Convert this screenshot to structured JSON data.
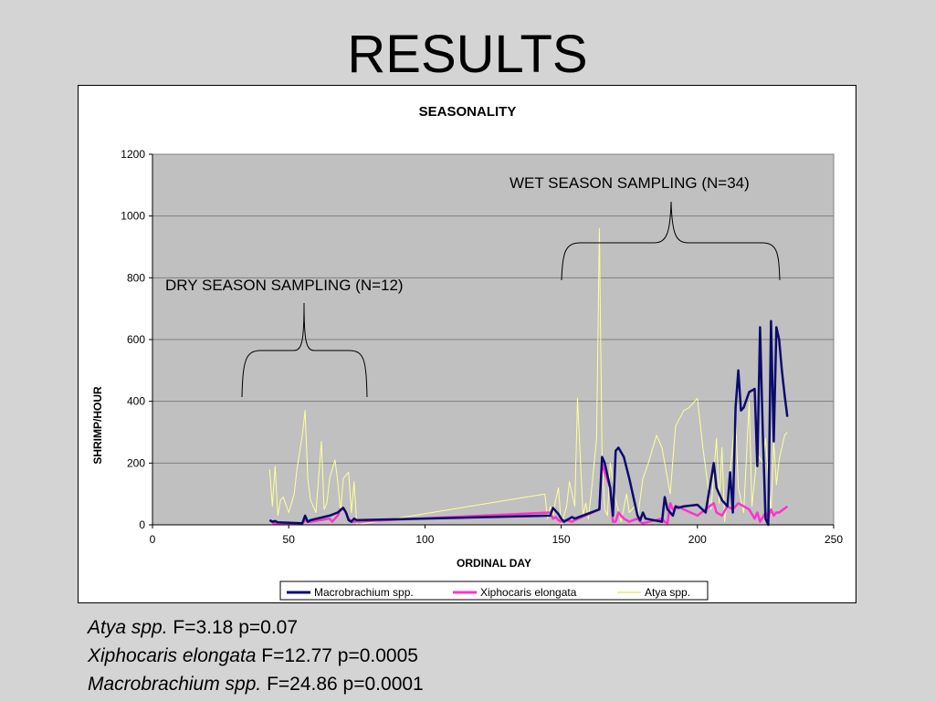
{
  "slide": {
    "title": "RESULTS"
  },
  "chart_data": {
    "type": "line",
    "title": "SEASONALITY",
    "xlabel": "ORDINAL DAY",
    "ylabel": "SHRIMP/HOUR",
    "xlim": [
      0,
      250
    ],
    "ylim": [
      0,
      1200
    ],
    "xticks": [
      0,
      50,
      100,
      150,
      200,
      250
    ],
    "yticks": [
      0,
      200,
      400,
      600,
      800,
      1000,
      1200
    ],
    "grid": true,
    "legend_position": "bottom",
    "annotations": {
      "dry": "DRY SEASON SAMPLING (N=12)",
      "wet": "WET SEASON SAMPLING (N=34)"
    },
    "series": [
      {
        "name": "Macrobrachium spp.",
        "color": "#0b0b6e",
        "x": [
          43,
          44,
          45,
          46,
          55,
          56,
          57,
          58,
          65,
          68,
          70,
          71,
          72,
          73,
          74,
          75,
          146,
          147,
          148,
          149,
          150,
          151,
          152,
          153,
          154,
          155,
          164,
          165,
          166,
          168,
          169,
          170,
          171,
          173,
          175,
          178,
          179,
          180,
          181,
          187,
          188,
          189,
          190,
          191,
          192,
          193,
          195,
          200,
          203,
          206,
          207,
          208,
          209,
          211,
          212,
          213,
          214,
          215,
          216,
          217,
          219,
          221,
          222,
          223,
          224,
          225,
          226,
          227,
          228,
          229,
          230,
          231,
          232,
          233
        ],
        "y": [
          15,
          10,
          12,
          8,
          5,
          30,
          10,
          15,
          30,
          40,
          55,
          40,
          15,
          10,
          20,
          15,
          30,
          55,
          45,
          35,
          20,
          10,
          15,
          20,
          25,
          20,
          50,
          220,
          200,
          120,
          30,
          240,
          250,
          220,
          150,
          30,
          15,
          40,
          20,
          10,
          90,
          50,
          40,
          30,
          60,
          55,
          60,
          65,
          40,
          200,
          120,
          100,
          80,
          60,
          170,
          40,
          380,
          500,
          370,
          380,
          430,
          440,
          190,
          640,
          300,
          20,
          0,
          660,
          270,
          640,
          600,
          500,
          420,
          350
        ]
      },
      {
        "name": "Xiphocaris elongata",
        "color": "#ff33cc",
        "x": [
          44,
          45,
          46,
          55,
          56,
          57,
          58,
          65,
          66,
          67,
          68,
          69,
          70,
          71,
          72,
          73,
          146,
          147,
          148,
          149,
          150,
          152,
          154,
          155,
          164,
          165,
          166,
          168,
          169,
          170,
          171,
          173,
          175,
          178,
          179,
          180,
          187,
          188,
          189,
          190,
          191,
          193,
          195,
          200,
          206,
          207,
          209,
          211,
          213,
          215,
          217,
          219,
          221,
          222,
          223,
          225,
          226,
          227,
          228,
          229,
          230,
          233
        ],
        "y": [
          5,
          5,
          5,
          5,
          15,
          10,
          10,
          20,
          10,
          20,
          30,
          50,
          55,
          40,
          20,
          10,
          40,
          20,
          25,
          15,
          10,
          15,
          10,
          15,
          50,
          200,
          170,
          120,
          10,
          10,
          40,
          20,
          10,
          20,
          10,
          5,
          20,
          10,
          5,
          70,
          50,
          60,
          50,
          30,
          70,
          40,
          30,
          60,
          50,
          70,
          60,
          50,
          20,
          40,
          10,
          40,
          20,
          50,
          30,
          40,
          40,
          60
        ]
      },
      {
        "name": "Atya spp.",
        "color": "#ffff99",
        "x": [
          43,
          44,
          45,
          46,
          47,
          48,
          50,
          52,
          53,
          55,
          56,
          57,
          58,
          60,
          62,
          63,
          64,
          65,
          67,
          68,
          69,
          70,
          72,
          73,
          74,
          75,
          144,
          145,
          146,
          147,
          148,
          149,
          150,
          152,
          153,
          155,
          156,
          158,
          159,
          160,
          161,
          163,
          164,
          165,
          166,
          167,
          168,
          170,
          172,
          174,
          175,
          177,
          178,
          180,
          182,
          185,
          187,
          190,
          192,
          195,
          197,
          200,
          202,
          205,
          207,
          208,
          209,
          210,
          212,
          214,
          215,
          217,
          219,
          220,
          222,
          224,
          225,
          227,
          228,
          229,
          230,
          232,
          233
        ],
        "y": [
          180,
          60,
          190,
          30,
          80,
          90,
          40,
          100,
          180,
          290,
          370,
          150,
          80,
          40,
          270,
          50,
          70,
          150,
          210,
          140,
          40,
          150,
          170,
          40,
          140,
          0,
          100,
          20,
          60,
          30,
          80,
          120,
          0,
          60,
          140,
          60,
          410,
          30,
          70,
          20,
          100,
          280,
          960,
          210,
          50,
          30,
          200,
          80,
          10,
          100,
          40,
          60,
          20,
          150,
          200,
          290,
          250,
          100,
          320,
          370,
          380,
          410,
          250,
          50,
          280,
          70,
          250,
          10,
          170,
          360,
          120,
          40,
          400,
          60,
          230,
          200,
          280,
          30,
          270,
          130,
          210,
          290,
          300
        ]
      }
    ]
  },
  "stats": [
    {
      "species": "Atya spp.",
      "result": " F=3.18 p=0.07"
    },
    {
      "species": "Xiphocaris elongata",
      "result": " F=12.77 p=0.0005"
    },
    {
      "species": "Macrobrachium spp.",
      "result": " F=24.86 p=0.0001"
    }
  ]
}
